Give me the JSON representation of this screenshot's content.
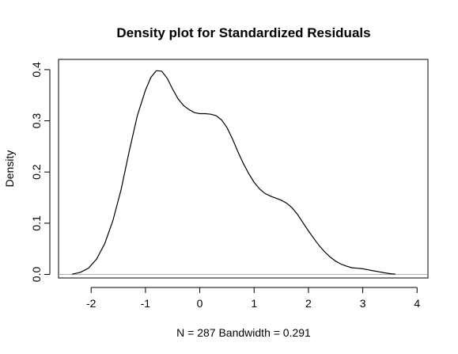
{
  "chart_data": {
    "type": "line",
    "title": "Density plot for Standardized Residuals",
    "xlabel": "N = 287   Bandwidth = 0.291",
    "ylabel": "Density",
    "xlim": [
      -2.6,
      4.2
    ],
    "ylim": [
      -0.007,
      0.42
    ],
    "x_ticks": [
      -2,
      -1,
      0,
      1,
      2,
      3,
      4
    ],
    "x_tick_labels": [
      "-2",
      "-1",
      "0",
      "1",
      "2",
      "3",
      "4"
    ],
    "y_ticks": [
      0.0,
      0.1,
      0.2,
      0.3,
      0.4
    ],
    "y_tick_labels": [
      "0.0",
      "0.1",
      "0.2",
      "0.3",
      "0.4"
    ],
    "grid": false,
    "baseline": 0,
    "baseline_color": "#b0b0b0",
    "line_color": "#000000",
    "series": [
      {
        "x": [
          -2.35,
          -2.2,
          -2.05,
          -1.9,
          -1.75,
          -1.6,
          -1.45,
          -1.3,
          -1.15,
          -1.0,
          -0.9,
          -0.8,
          -0.7,
          -0.6,
          -0.5,
          -0.4,
          -0.3,
          -0.2,
          -0.1,
          0.0,
          0.1,
          0.2,
          0.3,
          0.4,
          0.5,
          0.6,
          0.7,
          0.8,
          0.9,
          1.0,
          1.1,
          1.2,
          1.3,
          1.4,
          1.5,
          1.6,
          1.7,
          1.8,
          1.9,
          2.0,
          2.1,
          2.2,
          2.3,
          2.4,
          2.5,
          2.6,
          2.7,
          2.8,
          2.9,
          3.0,
          3.1,
          3.2,
          3.3,
          3.4,
          3.5,
          3.6
        ],
        "y": [
          0.0005,
          0.004,
          0.012,
          0.03,
          0.06,
          0.105,
          0.165,
          0.24,
          0.31,
          0.36,
          0.385,
          0.398,
          0.397,
          0.383,
          0.362,
          0.343,
          0.33,
          0.322,
          0.316,
          0.314,
          0.314,
          0.313,
          0.31,
          0.302,
          0.287,
          0.265,
          0.24,
          0.217,
          0.197,
          0.18,
          0.167,
          0.158,
          0.153,
          0.149,
          0.145,
          0.139,
          0.13,
          0.117,
          0.101,
          0.085,
          0.07,
          0.056,
          0.044,
          0.034,
          0.026,
          0.02,
          0.016,
          0.013,
          0.012,
          0.011,
          0.009,
          0.007,
          0.005,
          0.003,
          0.0015,
          0.0005
        ]
      }
    ]
  }
}
